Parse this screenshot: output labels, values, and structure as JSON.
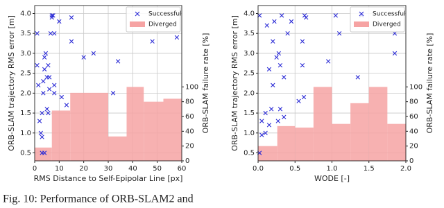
{
  "chart_data": [
    {
      "type": "scatter",
      "x_label": "RMS Distance to Self-Epipolar Line [px]",
      "y_label": "ORB-SLAM trajectory RMS error [m]",
      "y2_label": "ORB-SLAM failure rate [%]",
      "xlim": [
        0,
        60
      ],
      "xticks": [
        0,
        10,
        20,
        30,
        40,
        50,
        60
      ],
      "ylim": [
        0.3,
        4.2
      ],
      "yticks": [
        0.5,
        {
          "value": 1,
          "label": "1.0"
        },
        1.5,
        {
          "value": 2,
          "label": "2.0"
        },
        2.5,
        {
          "value": 3,
          "label": "3.0"
        },
        3.5,
        {
          "value": 4,
          "label": "4.0"
        }
      ],
      "y2lim": [
        0,
        210
      ],
      "y2ticks": [
        0,
        20,
        40,
        60,
        80,
        100
      ],
      "grid": true,
      "legend": "upper right",
      "series": [
        {
          "name": "Successful",
          "color": "#2b2bd6",
          "x": [
            1,
            1,
            1.5,
            2,
            2.5,
            3,
            3,
            4,
            3,
            3.5,
            3.5,
            4,
            4,
            4.5,
            5,
            5,
            5.5,
            5.5,
            6,
            6,
            6.5,
            7,
            7,
            7.5,
            8,
            8,
            8,
            10,
            11,
            13,
            15,
            15,
            20,
            24,
            32,
            34,
            48,
            58
          ],
          "values": [
            3.5,
            2.7,
            2.2,
            1.3,
            1.0,
            0.9,
            0.5,
            0.5,
            1.5,
            2.0,
            2.3,
            2.6,
            2.9,
            3.0,
            2.4,
            1.6,
            2.7,
            1.5,
            2.1,
            2.4,
            3.5,
            3.9,
            3.95,
            3.95,
            3.5,
            2.2,
            2.0,
            3.8,
            1.9,
            1.7,
            3.9,
            3.3,
            2.9,
            3.0,
            2.0,
            2.8,
            3.3,
            3.4
          ]
        },
        {
          "name": "Diverged",
          "color": "#f6a3a3",
          "axis": "y2",
          "bins": [
            0,
            7,
            14.5,
            30,
            37.5,
            44.5,
            52.5,
            60
          ],
          "values": [
            18,
            68,
            92,
            33,
            100,
            80,
            84
          ]
        }
      ]
    },
    {
      "type": "scatter",
      "x_label": "WODE [-]",
      "y_label": "ORB-SLAM trajectory RMS error [m]",
      "y2_label": "ORB-SLAM failure rate [%]",
      "xlim": [
        0,
        2
      ],
      "xticks": [
        {
          "value": 0,
          "label": "0.0"
        },
        0.5,
        {
          "value": 1,
          "label": "1.0"
        },
        1.5,
        {
          "value": 2,
          "label": "2.0"
        }
      ],
      "ylim": [
        0.3,
        4.2
      ],
      "yticks": [
        0.5,
        {
          "value": 1,
          "label": "1.0"
        },
        1.5,
        {
          "value": 2,
          "label": "2.0"
        },
        2.5,
        {
          "value": 3,
          "label": "3.0"
        },
        3.5,
        {
          "value": 4,
          "label": "4.0"
        }
      ],
      "y2lim": [
        0,
        210
      ],
      "y2ticks": [
        0,
        20,
        40,
        60,
        80,
        100
      ],
      "grid": true,
      "legend": "upper right",
      "series": [
        {
          "name": "Successful",
          "color": "#2b2bd6",
          "x": [
            0.02,
            0.02,
            0.05,
            0.05,
            0.1,
            0.1,
            0.12,
            0.15,
            0.15,
            0.18,
            0.2,
            0.2,
            0.22,
            0.25,
            0.27,
            0.28,
            0.3,
            0.3,
            0.32,
            0.35,
            0.35,
            0.4,
            0.45,
            0.55,
            0.6,
            0.6,
            0.62,
            0.63,
            0.65,
            0.95,
            1.1,
            1.05,
            1.35,
            1.4,
            1.85,
            1.85
          ],
          "values": [
            0.5,
            3.95,
            1.3,
            0.95,
            1.0,
            1.5,
            3.7,
            2.6,
            1.2,
            1.6,
            3.3,
            2.2,
            3.8,
            2.9,
            1.3,
            3.0,
            2.7,
            1.6,
            3.95,
            2.4,
            1.4,
            3.5,
            3.8,
            1.8,
            3.3,
            2.7,
            1.9,
            3.95,
            3.9,
            2.8,
            3.5,
            3.95,
            2.4,
            3.95,
            3.5,
            3.0
          ]
        },
        {
          "name": "Diverged",
          "color": "#f6a3a3",
          "axis": "y2",
          "bins": [
            0,
            0.26,
            0.5,
            0.75,
            1.0,
            1.25,
            1.5,
            1.75,
            2.0
          ],
          "values": [
            20,
            47,
            45,
            100,
            50,
            78,
            100,
            50
          ]
        }
      ]
    }
  ],
  "caption": "Fig. 10: Performance of ORB-SLAM2 and"
}
